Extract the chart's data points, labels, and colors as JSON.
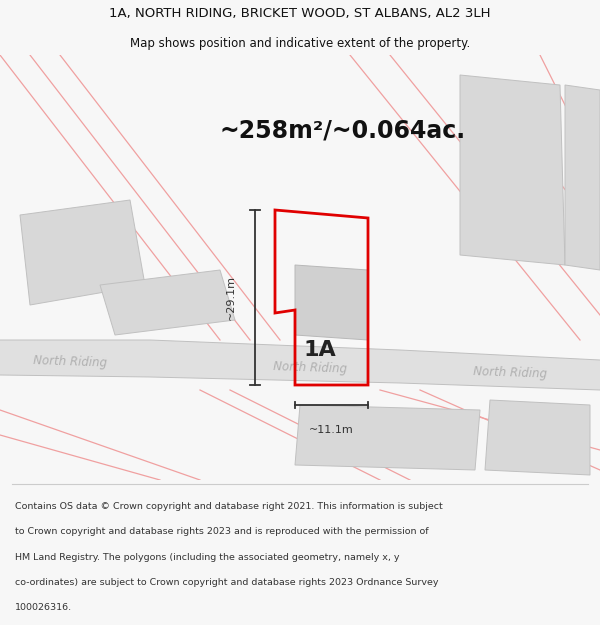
{
  "title_line1": "1A, NORTH RIDING, BRICKET WOOD, ST ALBANS, AL2 3LH",
  "title_line2": "Map shows position and indicative extent of the property.",
  "area_text": "~258m²/~0.064ac.",
  "label_1a": "1A",
  "dim_vertical": "~29.1m",
  "dim_horizontal": "~11.1m",
  "footer_lines": [
    "Contains OS data © Crown copyright and database right 2021. This information is subject",
    "to Crown copyright and database rights 2023 and is reproduced with the permission of",
    "HM Land Registry. The polygons (including the associated geometry, namely x, y",
    "co-ordinates) are subject to Crown copyright and database rights 2023 Ordnance Survey",
    "100026316."
  ],
  "bg_color": "#f7f7f7",
  "map_bg_color": "#ffffff",
  "road_fill_color": "#e0e0e0",
  "building_color": "#d8d8d8",
  "building_edge_color": "#c0c0c0",
  "road_line_color": "#f0a0a0",
  "property_color": "#e00000",
  "dim_line_color": "#333333",
  "road_label_color": "#b0b0b0",
  "title_color": "#111111",
  "footer_color": "#333333",
  "inner_bld_color": "#d0d0d0",
  "inner_bld_edge": "#b8b8b8"
}
